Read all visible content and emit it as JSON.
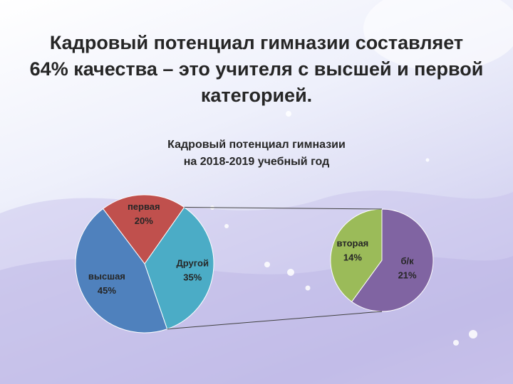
{
  "slide": {
    "title": "Кадровый потенциал гимназии составляет 64% качества – это учителя с высшей и первой категорией."
  },
  "chart_data": {
    "type": "pie",
    "title_line1": "Кадровый потенциал гимназии",
    "title_line2": "на 2018-2019 учебный год",
    "main_pie": [
      {
        "label": "первая",
        "value": 20,
        "display": "20%",
        "color": "#C0504D"
      },
      {
        "label": "Другой",
        "value": 35,
        "display": "35%",
        "color": "#4BACC6"
      },
      {
        "label": "высшая",
        "value": 45,
        "display": "45%",
        "color": "#4F81BD"
      }
    ],
    "secondary_pie": [
      {
        "label": "б/к",
        "value": 21,
        "display": "21%",
        "color": "#8064A2"
      },
      {
        "label": "вторая",
        "value": 14,
        "display": "14%",
        "color": "#9BBB59"
      }
    ],
    "breakout_of": "Другой"
  }
}
